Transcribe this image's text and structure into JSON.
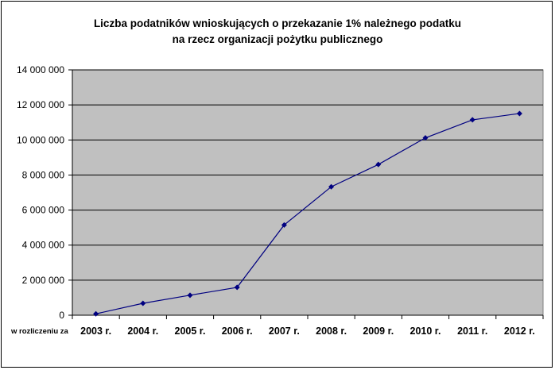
{
  "chart_data": {
    "type": "line",
    "title_line1": "Liczba podatników wnioskujących o przekazanie 1% należnego podatku",
    "title_line2": "na rzecz organizacji pożytku publicznego",
    "x_prefix_label": "w rozliczeniu za",
    "categories": [
      "2003 r.",
      "2004 r.",
      "2005 r.",
      "2006 r.",
      "2007 r.",
      "2008 r.",
      "2009 r.",
      "2010 r.",
      "2011 r.",
      "2012 r."
    ],
    "series": [
      {
        "values": [
          80000,
          680000,
          1140000,
          1590000,
          5150000,
          7330000,
          8600000,
          10120000,
          11150000,
          11510000
        ]
      }
    ],
    "ylim": [
      0,
      14000000
    ],
    "yticks": [
      0,
      2000000,
      4000000,
      6000000,
      8000000,
      10000000,
      12000000,
      14000000
    ],
    "ytick_labels": [
      "0",
      "2 000 000",
      "4 000 000",
      "6 000 000",
      "8 000 000",
      "10 000 000",
      "12 000 000",
      "14 000 000"
    ],
    "grid": true,
    "legend": "none",
    "colors": {
      "plot_bg": "#C0C0C0",
      "line": "#000080",
      "grid": "#000000"
    }
  }
}
